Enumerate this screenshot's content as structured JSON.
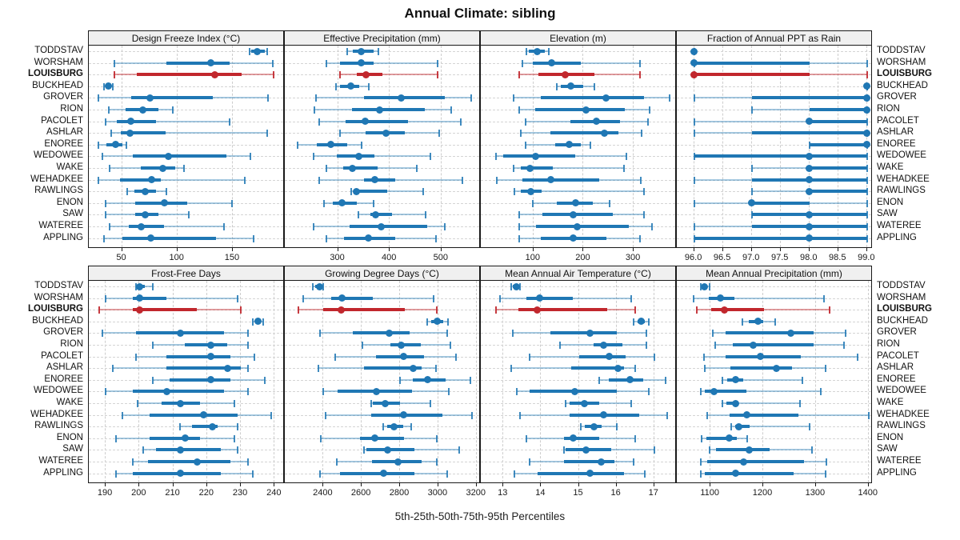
{
  "title": "Annual Climate: sibling",
  "footer": "5th-25th-50th-75th-95th Percentiles",
  "highlight_site": "LOUISBURG",
  "colors": {
    "series_blue": "#1f77b4",
    "series_blue_light": "rgba(31,119,180,0.40)",
    "series_blue_cap": "rgba(31,119,180,0.85)",
    "highlight_red": "#c1272d",
    "highlight_red_light": "rgba(193,39,45,0.45)",
    "highlight_red_cap": "rgba(193,39,45,0.9)",
    "header_bg": "#f0f0f0",
    "grid": "#cdcdcd",
    "border": "#1a1a1a"
  },
  "sites": [
    "TODDSTAV",
    "WORSHAM",
    "LOUISBURG",
    "BUCKHEAD",
    "GROVER",
    "RION",
    "PACOLET",
    "ASHLAR",
    "ENOREE",
    "WEDOWEE",
    "WAKE",
    "WEHADKEE",
    "RAWLINGS",
    "ENON",
    "SAW",
    "WATEREE",
    "APPLING"
  ],
  "chart_data": {
    "type": "scatter",
    "subtype": "percentile-interval-dotplot",
    "percentiles": [
      "5th",
      "25th",
      "50th",
      "75th",
      "95th"
    ],
    "legend_position": "none",
    "grid": "dashed",
    "panels": [
      {
        "title": "Design Freeze Index (°C)",
        "xlim": [
          20,
          197
        ],
        "ticks": [
          50,
          100,
          150
        ],
        "tick_labels": [
          "50",
          "100",
          "150"
        ],
        "values": [
          [
            165,
            167,
            172,
            179,
            181
          ],
          [
            43,
            90,
            130,
            147,
            186
          ],
          [
            43,
            63,
            134,
            158,
            187
          ],
          [
            34,
            36,
            38,
            40,
            42
          ],
          [
            29,
            58,
            75,
            132,
            182
          ],
          [
            38,
            53,
            69,
            83,
            96
          ],
          [
            35,
            45,
            58,
            81,
            147
          ],
          [
            40,
            49,
            57,
            89,
            181
          ],
          [
            29,
            36,
            44,
            50,
            54
          ],
          [
            32,
            60,
            92,
            144,
            166
          ],
          [
            39,
            67,
            87,
            98,
            106
          ],
          [
            29,
            48,
            77,
            85,
            161
          ],
          [
            55,
            61,
            71,
            81,
            90
          ],
          [
            35,
            62,
            88,
            109,
            149
          ],
          [
            35,
            62,
            71,
            83,
            110
          ],
          [
            39,
            56,
            67,
            88,
            142
          ],
          [
            34,
            50,
            76,
            135,
            169
          ]
        ]
      },
      {
        "title": "Effective Precipitation (mm)",
        "xlim": [
          197,
          576
        ],
        "ticks": [
          300,
          400,
          500
        ],
        "tick_labels": [
          "300",
          "400",
          "500"
        ],
        "values": [
          [
            317,
            328,
            345,
            369,
            378
          ],
          [
            278,
            304,
            345,
            369,
            492
          ],
          [
            304,
            336,
            354,
            385,
            493
          ],
          [
            296,
            303,
            325,
            341,
            360
          ],
          [
            258,
            350,
            422,
            507,
            557
          ],
          [
            255,
            327,
            380,
            467,
            519
          ],
          [
            264,
            314,
            352,
            436,
            538
          ],
          [
            303,
            353,
            393,
            429,
            496
          ],
          [
            221,
            259,
            286,
            318,
            346
          ],
          [
            252,
            297,
            340,
            371,
            478
          ],
          [
            277,
            310,
            327,
            377,
            453
          ],
          [
            263,
            350,
            371,
            411,
            540
          ],
          [
            325,
            330,
            336,
            395,
            465
          ],
          [
            273,
            290,
            308,
            336,
            369
          ],
          [
            339,
            362,
            373,
            404,
            470
          ],
          [
            252,
            323,
            384,
            472,
            507
          ],
          [
            278,
            312,
            359,
            411,
            490
          ]
        ]
      },
      {
        "title": "Elevation (m)",
        "xlim": [
          -5,
          386
        ],
        "ticks": [
          100,
          200,
          300
        ],
        "tick_labels": [
          "100",
          "200",
          "300"
        ],
        "values": [
          [
            86,
            91,
            108,
            123,
            131
          ],
          [
            78,
            99,
            136,
            195,
            313
          ],
          [
            71,
            110,
            163,
            221,
            313
          ],
          [
            146,
            155,
            175,
            200,
            221
          ],
          [
            61,
            115,
            245,
            320,
            372
          ],
          [
            71,
            103,
            205,
            282,
            332
          ],
          [
            84,
            173,
            225,
            273,
            328
          ],
          [
            74,
            134,
            241,
            269,
            316
          ],
          [
            84,
            144,
            172,
            195,
            213
          ],
          [
            26,
            39,
            104,
            184,
            285
          ],
          [
            61,
            75,
            93,
            139,
            280
          ],
          [
            27,
            78,
            134,
            232,
            314
          ],
          [
            62,
            75,
            94,
            116,
            321
          ],
          [
            99,
            146,
            184,
            219,
            252
          ],
          [
            71,
            118,
            180,
            259,
            321
          ],
          [
            72,
            105,
            187,
            290,
            336
          ],
          [
            72,
            114,
            179,
            245,
            312
          ]
        ]
      },
      {
        "title": "Fraction of Annual PPT as Rain",
        "xlim": [
          95.7,
          99.1
        ],
        "ticks": [
          96,
          96.5,
          97,
          97.5,
          98,
          98.5,
          99
        ],
        "tick_labels": [
          "96.0",
          "96.5",
          "97.0",
          "97.5",
          "98.0",
          "98.5",
          "99.0"
        ],
        "values": [
          [
            96,
            96,
            96,
            96,
            96
          ],
          [
            96,
            96,
            96,
            98,
            99
          ],
          [
            96,
            96,
            96,
            98,
            99
          ],
          [
            99,
            99,
            99,
            99,
            99
          ],
          [
            96,
            97,
            99,
            99,
            99
          ],
          [
            97,
            98,
            99,
            99,
            99
          ],
          [
            96,
            98,
            98,
            99,
            99
          ],
          [
            96,
            97,
            99,
            99,
            99
          ],
          [
            98,
            98,
            99,
            99,
            99
          ],
          [
            96,
            96,
            98,
            99,
            99
          ],
          [
            97,
            98,
            98,
            99,
            99
          ],
          [
            96,
            97,
            98,
            99,
            99
          ],
          [
            97,
            98,
            98,
            99,
            99
          ],
          [
            96,
            97,
            97,
            98,
            99
          ],
          [
            97,
            97,
            98,
            99,
            99
          ],
          [
            96,
            97,
            98,
            99,
            99
          ],
          [
            96,
            96,
            98,
            99,
            99
          ]
        ]
      },
      {
        "title": "Frost-Free Days",
        "xlim": [
          185,
          243
        ],
        "ticks": [
          190,
          200,
          210,
          220,
          230,
          240
        ],
        "tick_labels": [
          "190",
          "200",
          "210",
          "220",
          "230",
          "240"
        ],
        "values": [
          [
            199,
            199.5,
            200,
            201.5,
            204
          ],
          [
            190,
            198,
            200,
            208,
            229
          ],
          [
            188,
            198,
            200,
            217,
            230
          ],
          [
            233.5,
            234.5,
            235,
            235.5,
            236.5
          ],
          [
            189,
            199,
            212,
            225,
            232
          ],
          [
            204,
            213.5,
            221,
            226,
            232
          ],
          [
            199,
            208,
            221,
            227,
            234
          ],
          [
            192,
            208,
            226,
            230,
            232
          ],
          [
            204,
            209,
            221,
            227,
            237
          ],
          [
            190,
            198,
            208,
            225,
            232
          ],
          [
            199.5,
            206.5,
            212,
            218,
            228
          ],
          [
            195,
            203,
            219,
            229,
            239
          ],
          [
            212,
            215.5,
            221.5,
            223,
            229
          ],
          [
            193,
            203,
            213.5,
            218,
            228
          ],
          [
            201,
            205,
            212,
            224,
            229
          ],
          [
            198,
            202.5,
            217,
            227,
            232
          ],
          [
            193,
            198,
            212,
            224,
            233.5
          ]
        ]
      },
      {
        "title": "Growing Degree Days (°C)",
        "xlim": [
          2198,
          3222
        ],
        "ticks": [
          2400,
          2600,
          2800,
          3000,
          3200
        ],
        "tick_labels": [
          "2400",
          "2600",
          "2800",
          "3000",
          "3200"
        ],
        "values": [
          [
            2345,
            2357,
            2380,
            2388,
            2397
          ],
          [
            2293,
            2439,
            2498,
            2658,
            2976
          ],
          [
            2268,
            2400,
            2494,
            2825,
            2994
          ],
          [
            2943,
            2964,
            2994,
            3026,
            3050
          ],
          [
            2383,
            2553,
            2742,
            2851,
            3046
          ],
          [
            2603,
            2751,
            2807,
            2908,
            3064
          ],
          [
            2460,
            2675,
            2820,
            2925,
            3094
          ],
          [
            2373,
            2613,
            2869,
            2911,
            2990
          ],
          [
            2800,
            2867,
            2946,
            3039,
            3168
          ],
          [
            2400,
            2473,
            2678,
            2862,
            3054
          ],
          [
            2651,
            2657,
            2723,
            2800,
            2957
          ],
          [
            2411,
            2650,
            2817,
            3022,
            3175
          ],
          [
            2710,
            2735,
            2770,
            2815,
            2860
          ],
          [
            2388,
            2592,
            2668,
            2821,
            2992
          ],
          [
            2610,
            2625,
            2735,
            2875,
            3110
          ],
          [
            2471,
            2654,
            2789,
            2911,
            2992
          ],
          [
            2383,
            2485,
            2713,
            2876,
            3047
          ]
        ]
      },
      {
        "title": "Mean Annual Air Temperature (°C)",
        "xlim": [
          12.4,
          17.6
        ],
        "ticks": [
          13,
          14,
          15,
          16,
          17
        ],
        "tick_labels": [
          "13",
          "14",
          "15",
          "16",
          "17"
        ],
        "values": [
          [
            13.2,
            13.25,
            13.35,
            13.4,
            13.45
          ],
          [
            12.9,
            13.6,
            13.95,
            14.85,
            16.4
          ],
          [
            12.8,
            13.4,
            13.9,
            15.75,
            16.5
          ],
          [
            16.45,
            16.55,
            16.65,
            16.75,
            16.85
          ],
          [
            13.25,
            14.25,
            15.3,
            16.0,
            16.8
          ],
          [
            14.5,
            15.4,
            15.65,
            16.15,
            16.8
          ],
          [
            13.7,
            15.0,
            15.8,
            16.25,
            17.0
          ],
          [
            13.2,
            14.8,
            16.05,
            16.2,
            16.5
          ],
          [
            15.55,
            15.8,
            16.35,
            16.7,
            17.3
          ],
          [
            13.35,
            13.7,
            14.9,
            16.0,
            16.85
          ],
          [
            14.65,
            14.75,
            15.15,
            15.55,
            16.4
          ],
          [
            13.45,
            14.75,
            15.65,
            16.6,
            17.35
          ],
          [
            15.05,
            15.15,
            15.4,
            15.6,
            16.0
          ],
          [
            13.6,
            14.6,
            14.85,
            15.55,
            16.5
          ],
          [
            14.6,
            14.65,
            15.2,
            15.85,
            17.0
          ],
          [
            13.7,
            14.6,
            15.6,
            15.95,
            16.45
          ],
          [
            13.3,
            13.9,
            15.3,
            16.2,
            16.75
          ]
        ]
      },
      {
        "title": "Mean Annual Precipitation (mm)",
        "xlim": [
          1036,
          1408
        ],
        "ticks": [
          1100,
          1200,
          1300,
          1400
        ],
        "tick_labels": [
          "1100",
          "1200",
          "1300",
          "1400"
        ],
        "values": [
          [
            1081,
            1083,
            1088,
            1093,
            1098
          ],
          [
            1068,
            1096,
            1119,
            1145,
            1315
          ],
          [
            1074,
            1102,
            1126,
            1202,
            1326
          ],
          [
            1160,
            1173,
            1190,
            1200,
            1223
          ],
          [
            1104,
            1128,
            1253,
            1295,
            1356
          ],
          [
            1109,
            1143,
            1181,
            1295,
            1354
          ],
          [
            1087,
            1129,
            1194,
            1271,
            1379
          ],
          [
            1089,
            1138,
            1225,
            1255,
            1319
          ],
          [
            1123,
            1131,
            1147,
            1162,
            1274
          ],
          [
            1081,
            1089,
            1106,
            1168,
            1310
          ],
          [
            1123,
            1130,
            1148,
            1153,
            1270
          ],
          [
            1094,
            1136,
            1169,
            1267,
            1400
          ],
          [
            1139,
            1147,
            1153,
            1174,
            1288
          ],
          [
            1083,
            1092,
            1136,
            1150,
            1169
          ],
          [
            1098,
            1110,
            1174,
            1212,
            1292
          ],
          [
            1082,
            1094,
            1163,
            1278,
            1320
          ],
          [
            1082,
            1089,
            1148,
            1258,
            1318
          ]
        ]
      }
    ]
  }
}
